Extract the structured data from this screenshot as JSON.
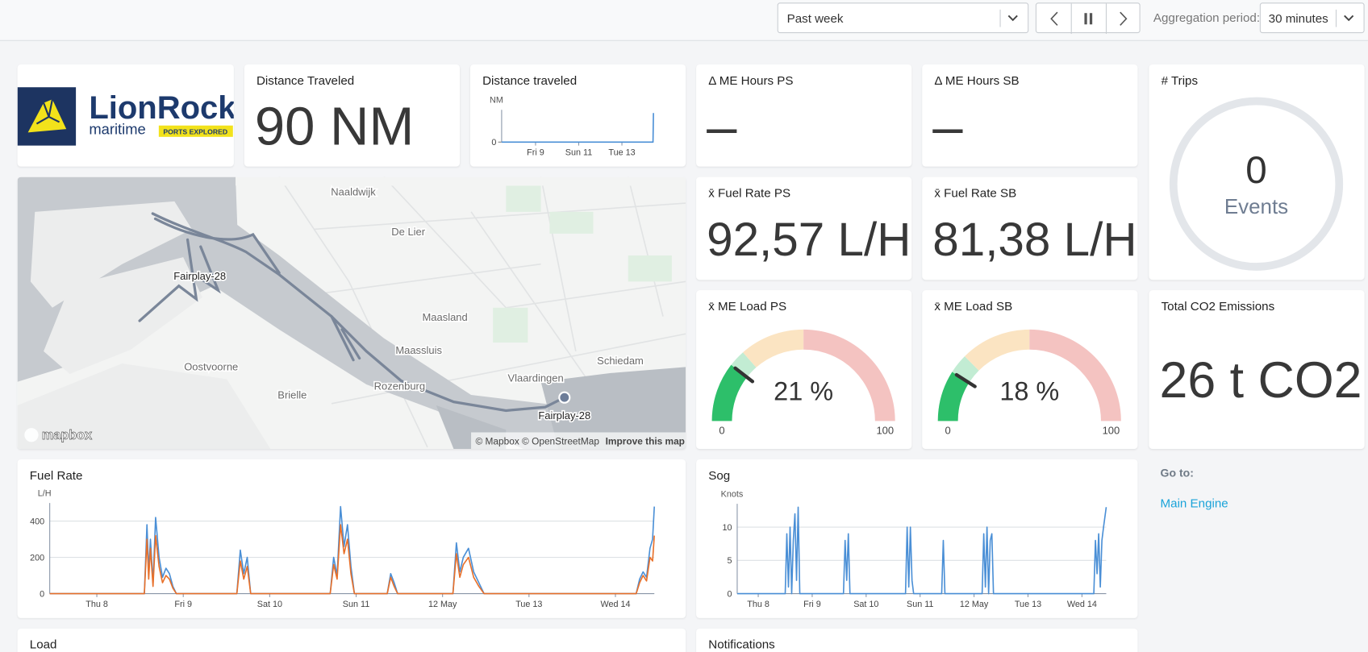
{
  "toolbar": {
    "range": "Past week",
    "aggregation_label": "Aggregation period:",
    "aggregation": "30 minutes"
  },
  "logo": {
    "name": "LionRock",
    "tagline": "maritime",
    "badge": "PORTS EXPLORED"
  },
  "tiles": {
    "distance": {
      "title": "Distance Traveled",
      "value": "90 NM"
    },
    "me_hours_ps": {
      "title": "Δ ME Hours PS",
      "value": "–"
    },
    "me_hours_sb": {
      "title": "Δ ME Hours SB",
      "value": "–"
    },
    "trips": {
      "title": "# Trips",
      "value": "0",
      "unit": "Events"
    },
    "fuel_ps": {
      "title": "x̄ Fuel Rate PS",
      "value": "92,57 L/H"
    },
    "fuel_sb": {
      "title": "x̄ Fuel Rate SB",
      "value": "81,38 L/H"
    },
    "co2": {
      "title": "Total CO2 Emissions",
      "value": "26 t CO2"
    }
  },
  "map": {
    "places": [
      "Naaldwijk",
      "De Lier",
      "Maasland",
      "Maassluis",
      "Vlaardingen",
      "Schiedam",
      "Oostvoorne",
      "Brielle",
      "Rozenburg"
    ],
    "vessel_labels": [
      "Fairplay-28",
      "Fairplay-28"
    ],
    "logo": "mapbox",
    "attribution": "© Mapbox © OpenStreetMap",
    "improve": "Improve this map"
  },
  "goto": {
    "title": "Go to:",
    "links": [
      "Main Engine"
    ]
  },
  "panels": {
    "load": "Load",
    "notifications": "Notifications"
  },
  "chart_data": [
    {
      "type": "line",
      "title": "Distance traveled",
      "y_label": "NM",
      "x": [
        -0.57,
        6.44,
        6.46
      ],
      "series": [
        {
          "color": "#4a8fd6",
          "values": [
            0,
            0,
            90
          ]
        }
      ],
      "xlim": [
        -0.57,
        6.46
      ],
      "ylim": [
        0,
        100
      ],
      "yticks": [
        0
      ],
      "xticks": [
        {
          "value": 1,
          "label": "Fri 9"
        },
        {
          "value": 3,
          "label": "Sun 11"
        },
        {
          "value": 5,
          "label": "Tue 13"
        }
      ],
      "grid": false
    },
    {
      "type": "line",
      "title": "Fuel Rate",
      "y_label": "L/H",
      "x": [
        -0.545,
        0.55,
        0.58,
        0.6,
        0.62,
        0.65,
        0.68,
        0.72,
        0.76,
        0.8,
        0.84,
        0.88,
        0.92,
        1.62,
        1.66,
        1.7,
        1.74,
        1.78,
        2.7,
        2.74,
        2.78,
        2.82,
        2.86,
        2.9,
        2.94,
        2.98,
        3.36,
        3.4,
        3.44,
        3.48,
        4.12,
        4.16,
        4.2,
        4.24,
        4.3,
        4.36,
        4.42,
        4.48,
        6.24,
        6.28,
        6.32,
        6.36,
        6.4,
        6.43,
        6.45
      ],
      "series": [
        {
          "color": "#4a8fd6",
          "values": [
            0,
            0,
            380,
            120,
            300,
            60,
            420,
            200,
            90,
            140,
            110,
            40,
            0,
            0,
            240,
            110,
            200,
            0,
            0,
            200,
            100,
            480,
            260,
            380,
            150,
            0,
            0,
            110,
            60,
            0,
            0,
            280,
            120,
            200,
            250,
            120,
            60,
            0,
            0,
            80,
            120,
            90,
            250,
            300,
            480
          ]
        },
        {
          "color": "#e8702a",
          "values": [
            0,
            0,
            300,
            80,
            250,
            40,
            320,
            150,
            60,
            100,
            80,
            30,
            0,
            0,
            180,
            80,
            150,
            0,
            0,
            160,
            80,
            380,
            220,
            300,
            110,
            0,
            0,
            90,
            40,
            0,
            0,
            220,
            90,
            160,
            200,
            90,
            40,
            0,
            0,
            60,
            100,
            70,
            200,
            180,
            320
          ]
        }
      ],
      "xlim": [
        -0.545,
        6.45
      ],
      "ylim": [
        0,
        500
      ],
      "yticks": [
        0,
        200,
        400
      ],
      "xticks": [
        {
          "value": 0,
          "label": "Thu 8"
        },
        {
          "value": 1,
          "label": "Fri 9"
        },
        {
          "value": 2,
          "label": "Sat 10"
        },
        {
          "value": 3,
          "label": "Sun 11"
        },
        {
          "value": 4,
          "label": "12 May"
        },
        {
          "value": 5,
          "label": "Tue 13"
        },
        {
          "value": 6,
          "label": "Wed 14"
        }
      ],
      "grid": true
    },
    {
      "type": "line",
      "title": "Sog",
      "y_label": "Knots",
      "x": [
        -0.39,
        0.5,
        0.53,
        0.56,
        0.59,
        0.62,
        0.65,
        0.68,
        0.71,
        0.74,
        0.77,
        0.8,
        1.58,
        1.61,
        1.64,
        1.67,
        1.7,
        2.73,
        2.76,
        2.79,
        2.82,
        2.85,
        2.88,
        3.4,
        3.43,
        3.46,
        4.15,
        4.18,
        4.21,
        4.24,
        4.27,
        4.3,
        4.33,
        4.36,
        6.22,
        6.25,
        6.28,
        6.31,
        6.34,
        6.37,
        6.4,
        6.45
      ],
      "series": [
        {
          "color": "#4a8fd6",
          "values": [
            0,
            0,
            9,
            1,
            10,
            0,
            8,
            12,
            2,
            13,
            0,
            0,
            0,
            8,
            2,
            9,
            0,
            0,
            10,
            1,
            10,
            2,
            0,
            0,
            8,
            0,
            0,
            9,
            1,
            10,
            0,
            8,
            9,
            0,
            0,
            8,
            3,
            9,
            1,
            8,
            10,
            13
          ]
        }
      ],
      "xlim": [
        -0.39,
        6.45
      ],
      "ylim": [
        0,
        13.5
      ],
      "yticks": [
        0,
        5,
        10
      ],
      "xticks": [
        {
          "value": 0,
          "label": "Thu 8"
        },
        {
          "value": 1,
          "label": "Fri 9"
        },
        {
          "value": 2,
          "label": "Sat 10"
        },
        {
          "value": 3,
          "label": "Sun 11"
        },
        {
          "value": 4,
          "label": "12 May"
        },
        {
          "value": 5,
          "label": "Tue 13"
        },
        {
          "value": 6,
          "label": "Wed 14"
        }
      ],
      "grid": true
    },
    {
      "type": "gauge",
      "title": "x̄ ME Load PS",
      "value": 21,
      "value_label": "21 %",
      "ticks": [
        0,
        100
      ],
      "color": "#2dbf6a",
      "bands": [
        {
          "from": 0,
          "to": 27,
          "color": "#c2ecd3"
        },
        {
          "from": 27,
          "to": 50,
          "color": "#fbe4c2"
        },
        {
          "from": 50,
          "to": 100,
          "color": "#f4c3c1"
        }
      ]
    },
    {
      "type": "gauge",
      "title": "x̄ ME Load SB",
      "value": 18,
      "value_label": "18 %",
      "ticks": [
        0,
        100
      ],
      "color": "#2dbf6a",
      "bands": [
        {
          "from": 0,
          "to": 25,
          "color": "#c2ecd3"
        },
        {
          "from": 25,
          "to": 50,
          "color": "#fbe4c2"
        },
        {
          "from": 50,
          "to": 100,
          "color": "#f4c3c1"
        }
      ]
    }
  ]
}
